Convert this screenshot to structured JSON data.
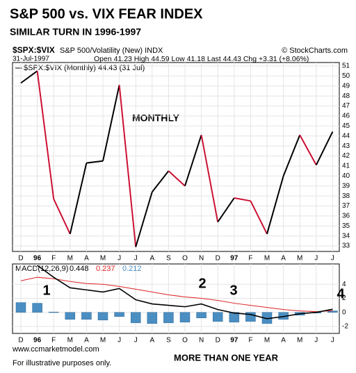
{
  "header": {
    "title": "S&P 500 vs. VIX FEAR INDEX",
    "subtitle": "SIMILAR TURN IN 1996-1997",
    "symbol": "$SPX:$VIX",
    "description": "S&P 500/Volatility (New) INDX",
    "source": "© StockCharts.com",
    "date": "31-Jul-1997",
    "quote": "Open 41.23 High 44.59 Low 41.18 Last 44.43 Chg +3.31 (+8.06%)",
    "footer_left": "www.ccmarketmodel.com",
    "footer_note": "For illustrative purposes only.",
    "footer_right": "MORE THAN ONE YEAR"
  },
  "chart_data": [
    {
      "type": "line",
      "legend": "$SPX:$VIX (Monthly) 44.43 (31 Jul)",
      "annotation": "MONTHLY",
      "categories": [
        "D",
        "96",
        "F",
        "M",
        "A",
        "M",
        "J",
        "J",
        "A",
        "S",
        "O",
        "N",
        "D",
        "97",
        "F",
        "M",
        "A",
        "M",
        "J",
        "J"
      ],
      "values": [
        49.3,
        50.5,
        37.7,
        34.2,
        41.3,
        41.5,
        49.1,
        32.9,
        38.4,
        40.5,
        39.0,
        44.1,
        35.4,
        37.8,
        37.5,
        34.2,
        40.0,
        44.1,
        41.1,
        44.43
      ],
      "up_color": "#000000",
      "down_color": "#cc1133",
      "ylim": [
        32.45,
        51.35
      ],
      "yticks": [
        33,
        34,
        35,
        36,
        37,
        38,
        39,
        40,
        41,
        42,
        43,
        44,
        45,
        46,
        47,
        48,
        49,
        50,
        51
      ],
      "grid": true
    },
    {
      "type": "macd",
      "label": "MACD(12,26,9)",
      "categories": [
        "D",
        "96",
        "F",
        "M",
        "A",
        "M",
        "J",
        "J",
        "A",
        "S",
        "O",
        "N",
        "D",
        "97",
        "F",
        "M",
        "A",
        "M",
        "J",
        "J"
      ],
      "series": [
        {
          "name": "0.448",
          "color": "#000000",
          "values": [
            null,
            6.7,
            5.0,
            3.5,
            3.2,
            2.9,
            3.4,
            1.8,
            1.2,
            1.0,
            0.8,
            1.2,
            0.4,
            -0.1,
            -0.3,
            -0.9,
            -0.6,
            -0.2,
            0.0,
            0.448
          ]
        },
        {
          "name": "0.237",
          "color": "#dd2222",
          "values": [
            4.5,
            5.0,
            4.8,
            4.4,
            4.1,
            4.0,
            3.7,
            3.3,
            2.9,
            2.5,
            2.2,
            2.0,
            1.7,
            1.3,
            1.0,
            0.7,
            0.4,
            0.2,
            0.1,
            0.237
          ]
        },
        {
          "name": "0.212",
          "color": "#4a8ec2",
          "values": [
            1.4,
            1.3,
            0.05,
            -1.0,
            -1.0,
            -1.1,
            -0.6,
            -1.5,
            -1.6,
            -1.5,
            -1.4,
            -0.8,
            -1.3,
            -1.4,
            -1.3,
            -1.6,
            -1.0,
            -0.4,
            -0.1,
            0.212
          ]
        }
      ],
      "annotations": [
        "1",
        "2",
        "3",
        "4"
      ],
      "ylim": [
        -3,
        6.9
      ],
      "yticks": [
        4,
        2,
        0,
        -2
      ],
      "grid": true
    }
  ]
}
